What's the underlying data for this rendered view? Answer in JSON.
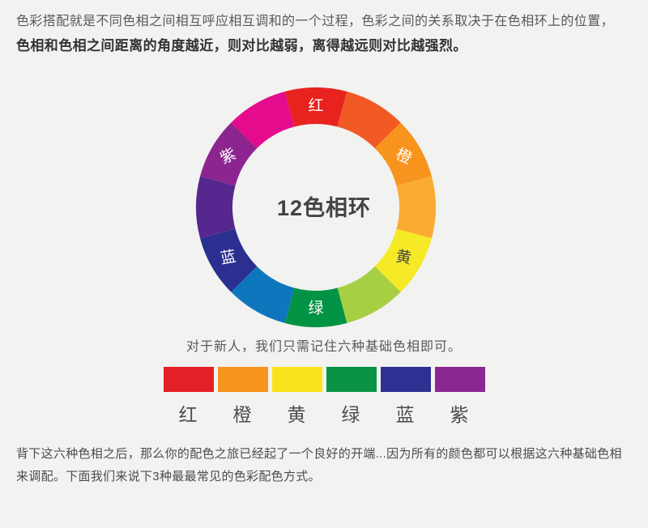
{
  "page": {
    "background": "#f2f2f0"
  },
  "intro": {
    "line1": "色彩搭配就是不同色相之间相互呼应相互调和的一个过程，色彩之间的关系取决于在色相环上的位置，",
    "line2_bold": "色相和色相之间距离的角度越近，则对比越弱，离得越远则对比越强烈。"
  },
  "wheel": {
    "title": "12色相环",
    "title_color": "#434343",
    "segments": [
      {
        "angle": 0,
        "color": "#e8231f",
        "label": "红",
        "label_color": "#ffffff",
        "label_rotation": 0
      },
      {
        "angle": 30,
        "color": "#f15a24",
        "label": ""
      },
      {
        "angle": 60,
        "color": "#f7941e",
        "label": "橙",
        "label_color": "#ffffff",
        "label_rotation": 25
      },
      {
        "angle": 90,
        "color": "#f9ab32",
        "label": ""
      },
      {
        "angle": 120,
        "color": "#f6e926",
        "label": "黄",
        "label_color": "#4a4a46",
        "label_rotation": 10
      },
      {
        "angle": 150,
        "color": "#a6cf44",
        "label": ""
      },
      {
        "angle": 180,
        "color": "#029345",
        "label": "绿",
        "label_color": "#ffffff",
        "label_rotation": 0
      },
      {
        "angle": 210,
        "color": "#0e76bd",
        "label": ""
      },
      {
        "angle": 240,
        "color": "#2b2f90",
        "label": "蓝",
        "label_color": "#ffffff",
        "label_rotation": -10
      },
      {
        "angle": 270,
        "color": "#55278f",
        "label": ""
      },
      {
        "angle": 300,
        "color": "#8d2590",
        "label": "紫",
        "label_color": "#ffffff",
        "label_rotation": -25
      },
      {
        "angle": 330,
        "color": "#e40c8c",
        "label": ""
      }
    ]
  },
  "caption": "对于新人，我们只需记住六种基础色相即可。",
  "basic_swatches": [
    {
      "label": "红",
      "color": "#e32025"
    },
    {
      "label": "橙",
      "color": "#f7941d"
    },
    {
      "label": "黄",
      "color": "#fbe31b"
    },
    {
      "label": "绿",
      "color": "#0a9347"
    },
    {
      "label": "蓝",
      "color": "#2e3191"
    },
    {
      "label": "紫",
      "color": "#8a2790"
    }
  ],
  "outro": "背下这六种色相之后，那么你的配色之旅已经起了一个良好的开端...因为所有的颜色都可以根据这六种基础色相来调配。下面我们来说下3种最最常见的色彩配色方式。"
}
